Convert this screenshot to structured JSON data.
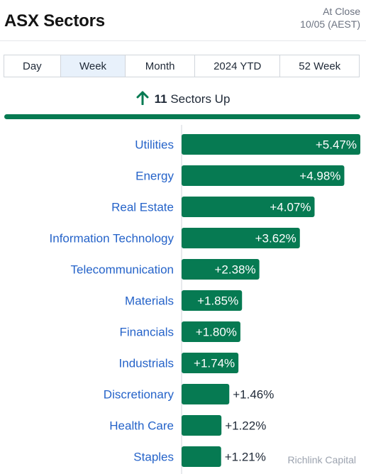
{
  "header": {
    "title": "ASX Sectors",
    "status_line1": "At Close",
    "status_line2": "10/05 (AEST)"
  },
  "tabs": [
    {
      "label": "Day",
      "active": false
    },
    {
      "label": "Week",
      "active": true
    },
    {
      "label": "Month",
      "active": false
    },
    {
      "label": "2024 YTD",
      "active": false
    },
    {
      "label": "52 Week",
      "active": false
    }
  ],
  "summary": {
    "count": "11",
    "text": "Sectors Up",
    "icon": "arrow-up-icon"
  },
  "colors": {
    "bar": "#067a52",
    "label": "#2563c9",
    "summary_bar": "#067a52"
  },
  "watermark": "Richlink Capital",
  "chart_data": {
    "type": "bar",
    "orientation": "horizontal",
    "categories": [
      "Utilities",
      "Energy",
      "Real Estate",
      "Information Technology",
      "Telecommunication",
      "Materials",
      "Financials",
      "Industrials",
      "Discretionary",
      "Health Care",
      "Staples"
    ],
    "values": [
      5.47,
      4.98,
      4.07,
      3.62,
      2.38,
      1.85,
      1.8,
      1.74,
      1.46,
      1.22,
      1.21
    ],
    "value_labels": [
      "+5.47%",
      "+4.98%",
      "+4.07%",
      "+3.62%",
      "+2.38%",
      "+1.85%",
      "+1.80%",
      "+1.74%",
      "+1.46%",
      "+1.22%",
      "+1.21%"
    ],
    "unit": "%",
    "xlim": [
      0,
      5.47
    ]
  }
}
